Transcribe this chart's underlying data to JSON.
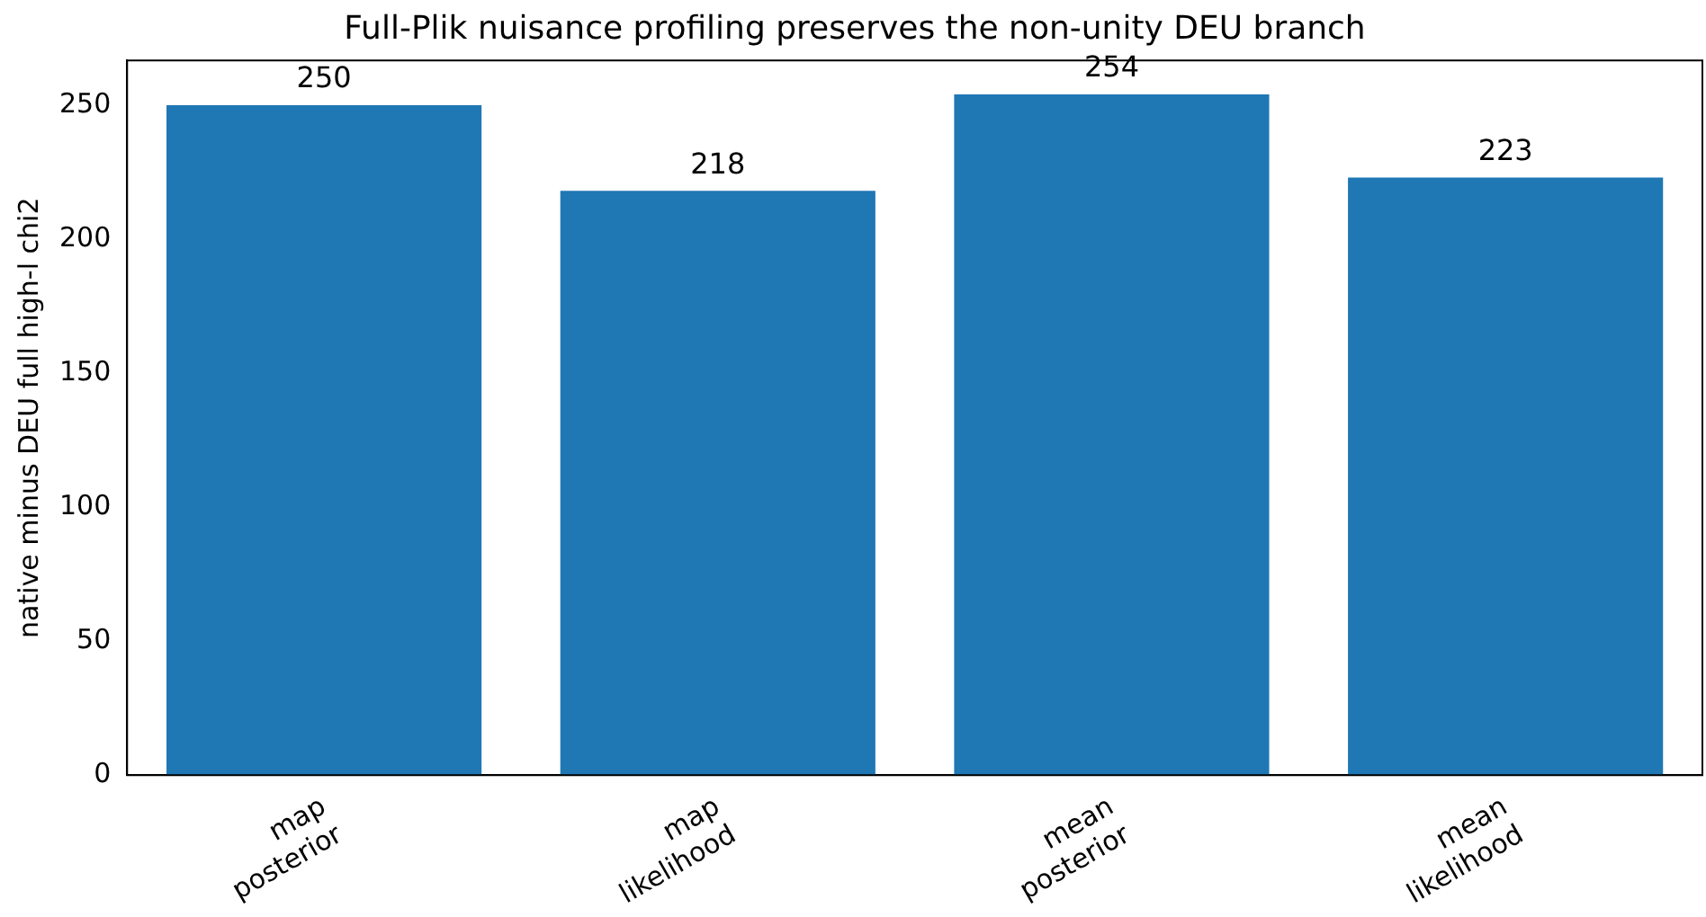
{
  "chart_data": {
    "type": "bar",
    "title": "Full-Plik nuisance profiling preserves the non-unity DEU branch",
    "ylabel": "native minus DEU full high-l chi2",
    "categories": [
      "map\nposterior",
      "map\nlikelihood",
      "mean\nposterior",
      "mean\nlikelihood"
    ],
    "values": [
      250,
      218,
      254,
      223
    ],
    "color": "#1f77b4",
    "ylim": [
      0,
      266.7
    ],
    "yticks": [
      0,
      50,
      100,
      150,
      200,
      250
    ],
    "grid": false,
    "data_labels": true,
    "legend": false
  }
}
